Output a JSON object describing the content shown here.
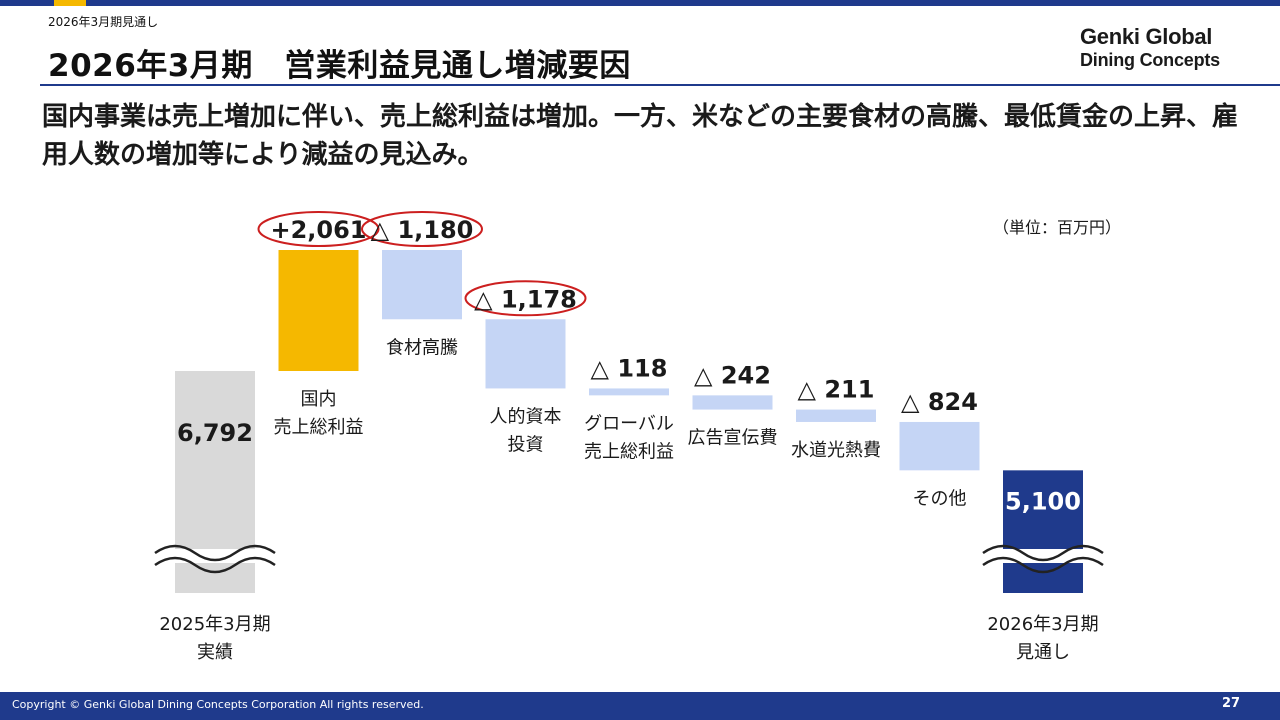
{
  "header": {
    "doc_label": "2026年3月期見通し",
    "title": "2026年3月期　営業利益見通し増減要因",
    "logo_line1": "Genki Global",
    "logo_line2": "Dining Concepts"
  },
  "headline": "国内事業は売上増加に伴い、売上総利益は増加。一方、米などの主要食材の高騰、最低賃金の上昇、雇用人数の増加等により減益の見込み。",
  "unit_label": "（単位：百万円）",
  "footer": {
    "copyright": "Copyright © Genki Global Dining Concepts Corporation All rights reserved.",
    "page_number": "27"
  },
  "colors": {
    "brand_navy": "#1f3a8c",
    "accent_yellow": "#f5b800",
    "increase": "#f5b800",
    "decrease": "#c5d5f5",
    "total_start": "#d9d9d9",
    "total_end": "#1f3a8c",
    "highlight_ring": "#cc1f1f"
  },
  "chart_data": {
    "type": "bar",
    "subtype": "waterfall",
    "unit": "百万円",
    "steps": [
      {
        "category": [
          "2025年3月期",
          "実績"
        ],
        "kind": "total",
        "value": 6792,
        "label": "6,792"
      },
      {
        "category": [
          "国内",
          "売上総利益"
        ],
        "kind": "increase",
        "value": 2061,
        "label": "+2,061",
        "highlighted": true
      },
      {
        "category": [
          "食材高騰"
        ],
        "kind": "decrease",
        "value": -1180,
        "label": "△ 1,180",
        "highlighted": true
      },
      {
        "category": [
          "人的資本",
          "投資"
        ],
        "kind": "decrease",
        "value": -1178,
        "label": "△ 1,178",
        "highlighted": true
      },
      {
        "category": [
          "グローバル",
          "売上総利益"
        ],
        "kind": "decrease",
        "value": -118,
        "label": "△ 118"
      },
      {
        "category": [
          "広告宣伝費"
        ],
        "kind": "decrease",
        "value": -242,
        "label": "△ 242"
      },
      {
        "category": [
          "水道光熱費"
        ],
        "kind": "decrease",
        "value": -211,
        "label": "△ 211"
      },
      {
        "category": [
          "その他"
        ],
        "kind": "decrease",
        "value": -824,
        "label": "△ 824"
      },
      {
        "category": [
          "2026年3月期",
          "見通し"
        ],
        "kind": "total",
        "value": 5100,
        "label": "5,100"
      }
    ],
    "axis_break": true,
    "grid": false,
    "legend": "none"
  }
}
